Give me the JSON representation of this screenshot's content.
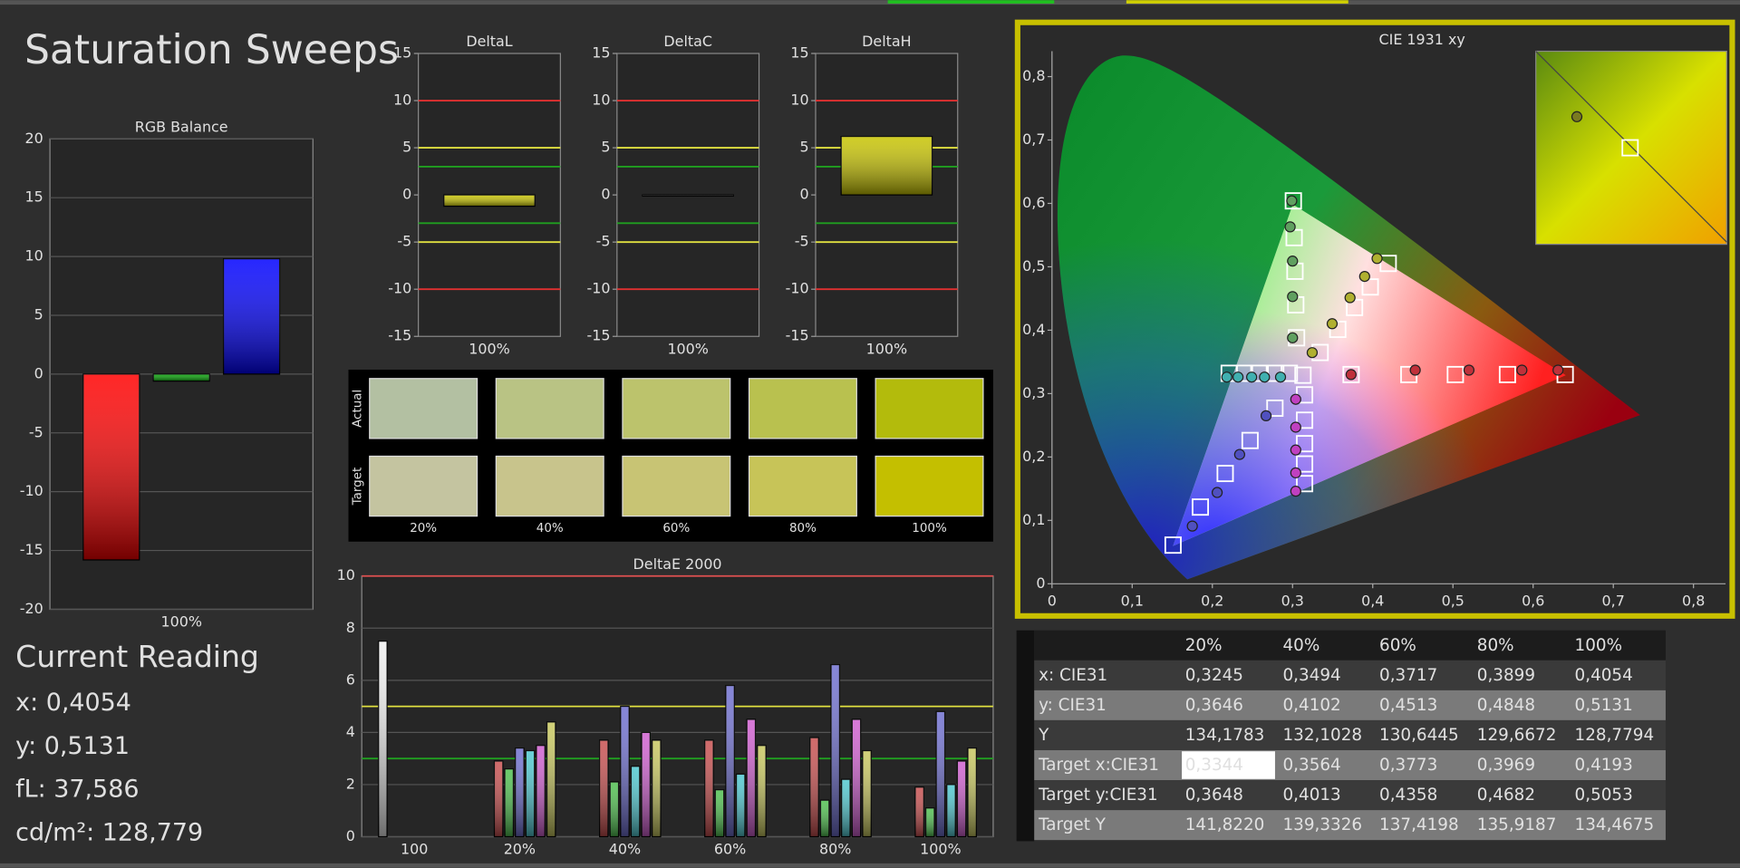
{
  "title": "Saturation Sweeps",
  "chart_data": [
    {
      "type": "bar",
      "title": "RGB Balance",
      "categories": [
        "100%"
      ],
      "series": [
        {
          "color": "#ff0000",
          "values": [
            -15.8
          ]
        },
        {
          "color": "#00a000",
          "values": [
            -0.6
          ]
        },
        {
          "color": "#0000ff",
          "values": [
            9.8
          ]
        }
      ],
      "ylim": [
        -20,
        20
      ],
      "yticks": [
        -20,
        -15,
        -10,
        -5,
        0,
        5,
        10,
        15,
        20
      ],
      "grid": true
    },
    {
      "type": "bar",
      "title": "DeltaL",
      "categories": [
        "100%"
      ],
      "values": [
        -1.2
      ],
      "color": "#c8c400",
      "ylim": [
        -15,
        15
      ],
      "yticks": [
        -15,
        -10,
        -5,
        0,
        5,
        10,
        15
      ],
      "reference_lines": [
        {
          "value": 10,
          "color": "#e03030"
        },
        {
          "value": -10,
          "color": "#e03030"
        },
        {
          "value": 5,
          "color": "#e0e040"
        },
        {
          "value": -5,
          "color": "#e0e040"
        },
        {
          "value": 3,
          "color": "#20a020"
        },
        {
          "value": -3,
          "color": "#20a020"
        }
      ]
    },
    {
      "type": "bar",
      "title": "DeltaC",
      "categories": [
        "100%"
      ],
      "values": [
        0
      ],
      "color": "#000000",
      "ylim": [
        -15,
        15
      ],
      "yticks": [
        -15,
        -10,
        -5,
        0,
        5,
        10,
        15
      ],
      "reference_lines": [
        {
          "value": 10,
          "color": "#e03030"
        },
        {
          "value": -10,
          "color": "#e03030"
        },
        {
          "value": 5,
          "color": "#e0e040"
        },
        {
          "value": -5,
          "color": "#e0e040"
        },
        {
          "value": 3,
          "color": "#20a020"
        },
        {
          "value": -3,
          "color": "#20a020"
        }
      ]
    },
    {
      "type": "bar",
      "title": "DeltaH",
      "categories": [
        "100%"
      ],
      "values": [
        6.2
      ],
      "color": "#c8c400",
      "ylim": [
        -15,
        15
      ],
      "yticks": [
        -15,
        -10,
        -5,
        0,
        5,
        10,
        15
      ],
      "reference_lines": [
        {
          "value": 10,
          "color": "#e03030"
        },
        {
          "value": -10,
          "color": "#e03030"
        },
        {
          "value": 5,
          "color": "#e0e040"
        },
        {
          "value": -5,
          "color": "#e0e040"
        },
        {
          "value": 3,
          "color": "#20a020"
        },
        {
          "value": -3,
          "color": "#20a020"
        }
      ]
    },
    {
      "type": "bar",
      "title": "DeltaE 2000",
      "categories": [
        "100",
        "20%",
        "40%",
        "60%",
        "80%",
        "100%"
      ],
      "series": [
        {
          "color": "#f0f0f0",
          "values": [
            7.5,
            null,
            null,
            null,
            null,
            null
          ]
        },
        {
          "color": "#c85050",
          "values": [
            null,
            2.9,
            3.7,
            3.7,
            3.8,
            1.9
          ]
        },
        {
          "color": "#50c050",
          "values": [
            null,
            2.6,
            2.1,
            1.8,
            1.4,
            1.1
          ]
        },
        {
          "color": "#7070d0",
          "values": [
            null,
            3.4,
            5.0,
            5.8,
            6.6,
            4.8
          ]
        },
        {
          "color": "#50c8d0",
          "values": [
            null,
            3.3,
            2.7,
            2.4,
            2.2,
            2.0
          ]
        },
        {
          "color": "#d060d0",
          "values": [
            null,
            3.5,
            4.0,
            4.5,
            4.5,
            2.9
          ]
        },
        {
          "color": "#c8c860",
          "values": [
            null,
            4.4,
            3.7,
            3.5,
            3.3,
            3.4
          ]
        }
      ],
      "ylim": [
        0,
        10
      ],
      "yticks": [
        0,
        2,
        4,
        6,
        8,
        10
      ],
      "grid": true,
      "reference_lines": [
        {
          "value": 10,
          "color": "#e05050"
        },
        {
          "value": 5,
          "color": "#e0e040"
        },
        {
          "value": 3,
          "color": "#20a020"
        }
      ]
    },
    {
      "type": "scatter",
      "title": "CIE 1931 xy",
      "xlim": [
        0,
        0.84
      ],
      "ylim": [
        0,
        0.84
      ],
      "xticks": [
        0,
        {
          "value": 0.1,
          "label": "0,1"
        },
        {
          "value": 0.2,
          "label": "0,2"
        },
        {
          "value": 0.3,
          "label": "0,3"
        },
        {
          "value": 0.4,
          "label": "0,4"
        },
        {
          "value": 0.5,
          "label": "0,5"
        },
        {
          "value": 0.6,
          "label": "0,6"
        },
        {
          "value": 0.7,
          "label": "0,7"
        },
        {
          "value": 0.8,
          "label": "0,8"
        }
      ],
      "yticks": [
        0,
        {
          "value": 0.1,
          "label": "0,1"
        },
        {
          "value": 0.2,
          "label": "0,2"
        },
        {
          "value": 0.3,
          "label": "0,3"
        },
        {
          "value": 0.4,
          "label": "0,4"
        },
        {
          "value": 0.5,
          "label": "0,5"
        },
        {
          "value": 0.6,
          "label": "0,6"
        },
        {
          "value": 0.7,
          "label": "0,7"
        },
        {
          "value": 0.8,
          "label": "0,8"
        }
      ],
      "series": [
        {
          "marker": "square",
          "color": "#ffffff",
          "x": [
            0.313,
            0.373,
            0.445,
            0.503,
            0.568,
            0.64
          ],
          "y": [
            0.329,
            0.33,
            0.33,
            0.33,
            0.33,
            0.33
          ]
        },
        {
          "marker": "circle",
          "color": "#c0303a",
          "x": [
            0.373,
            0.453,
            0.52,
            0.586,
            0.631
          ],
          "y": [
            0.33,
            0.337,
            0.337,
            0.337,
            0.337
          ]
        },
        {
          "marker": "square",
          "color": "#ffffff",
          "x": [
            0.305,
            0.304,
            0.303,
            0.302,
            0.301
          ],
          "y": [
            0.388,
            0.44,
            0.493,
            0.546,
            0.604
          ]
        },
        {
          "marker": "circle",
          "color": "#60a060",
          "x": [
            0.3,
            0.3,
            0.3,
            0.297,
            0.299
          ],
          "y": [
            0.388,
            0.453,
            0.509,
            0.563,
            0.604
          ]
        },
        {
          "marker": "square",
          "color": "#ffffff",
          "x": [
            0.278,
            0.247,
            0.216,
            0.185,
            0.151
          ],
          "y": [
            0.277,
            0.226,
            0.174,
            0.121,
            0.061
          ]
        },
        {
          "marker": "circle",
          "color": "#5050c0",
          "x": [
            0.267,
            0.234,
            0.206,
            0.175
          ],
          "y": [
            0.265,
            0.204,
            0.144,
            0.091
          ]
        },
        {
          "marker": "square",
          "color": "#ffffff",
          "x": [
            0.296,
            0.279,
            0.258,
            0.24,
            0.221
          ],
          "y": [
            0.332,
            0.332,
            0.332,
            0.332,
            0.332
          ]
        },
        {
          "marker": "circle",
          "color": "#40b0b0",
          "x": [
            0.285,
            0.265,
            0.249,
            0.232,
            0.218
          ],
          "y": [
            0.326,
            0.326,
            0.326,
            0.326,
            0.326
          ]
        },
        {
          "marker": "square",
          "color": "#ffffff",
          "x": [
            0.315,
            0.315,
            0.315,
            0.315,
            0.315
          ],
          "y": [
            0.298,
            0.258,
            0.221,
            0.189,
            0.158
          ]
        },
        {
          "marker": "circle",
          "color": "#c040c0",
          "x": [
            0.304,
            0.304,
            0.304,
            0.304,
            0.304
          ],
          "y": [
            0.291,
            0.247,
            0.211,
            0.175,
            0.146
          ]
        },
        {
          "marker": "square",
          "color": "#ffffff",
          "x": [
            0.3344,
            0.3564,
            0.3773,
            0.3969,
            0.4193
          ],
          "y": [
            0.3648,
            0.4013,
            0.4358,
            0.4682,
            0.5053
          ]
        },
        {
          "marker": "circle",
          "color": "#b0b030",
          "x": [
            0.3245,
            0.3494,
            0.3717,
            0.3899,
            0.4054
          ],
          "y": [
            0.3646,
            0.4102,
            0.4513,
            0.4848,
            0.5131
          ]
        }
      ]
    }
  ],
  "swatches": {
    "row_labels": [
      "Actual",
      "Target"
    ],
    "columns": [
      "20%",
      "40%",
      "60%",
      "80%",
      "100%"
    ],
    "actual": [
      "#b3c0a2",
      "#b9c384",
      "#bcc36c",
      "#b9c14f",
      "#b3bb0c"
    ],
    "target": [
      "#c4c4a0",
      "#c8c48c",
      "#c8c474",
      "#c7c458",
      "#c4bf00"
    ]
  },
  "current_reading": {
    "title": "Current Reading",
    "lines": [
      "x: 0,4054",
      "y: 0,5131",
      "fL: 37,586",
      "cd/m²: 128,779"
    ]
  },
  "table": {
    "columns": [
      "20%",
      "40%",
      "60%",
      "80%",
      "100%"
    ],
    "rows": [
      [
        "x: CIE31",
        "0,3245",
        "0,3494",
        "0,3717",
        "0,3899",
        "0,4054"
      ],
      [
        "y: CIE31",
        "0,3646",
        "0,4102",
        "0,4513",
        "0,4848",
        "0,5131"
      ],
      [
        "Y",
        "134,1783",
        "132,1028",
        "130,6445",
        "129,6672",
        "128,7794"
      ],
      [
        "Target x:CIE31",
        "0,3344",
        "0,3564",
        "0,3773",
        "0,3969",
        "0,4193"
      ],
      [
        "Target y:CIE31",
        "0,3648",
        "0,4013",
        "0,4358",
        "0,4682",
        "0,5053"
      ],
      [
        "Target Y",
        "141,8220",
        "139,3326",
        "137,4198",
        "135,9187",
        "134,4675"
      ]
    ]
  }
}
